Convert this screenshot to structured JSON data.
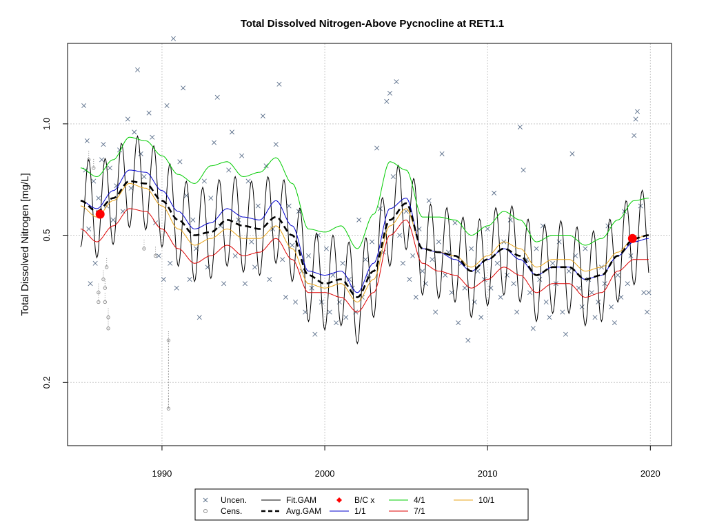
{
  "chart_data": {
    "type": "scatter",
    "title": "Total Dissolved Nitrogen-Above Pycnocline at RET1.1",
    "xlabel": "",
    "ylabel": "Total Dissolved Nitrogen [mg/L]",
    "xlim": [
      1984.2,
      2021.3
    ],
    "ylim": [
      0.135,
      1.65
    ],
    "y_scale": "log",
    "x_ticks": [
      1990,
      2000,
      2010,
      2020
    ],
    "y_ticks": [
      0.2,
      0.5,
      1.0
    ],
    "y_tick_labels": [
      "0.2",
      "0.5",
      "1.0"
    ],
    "grid": true,
    "legend_position": "bottom",
    "legend": [
      {
        "key": "uncen",
        "label": "Uncen.",
        "marker": "x",
        "color": "#5a6e8a"
      },
      {
        "key": "cens",
        "label": "Cens.",
        "marker": "circle",
        "color": "#8a8a8a"
      },
      {
        "key": "fit_gam",
        "label": "Fit.GAM",
        "line": "solid",
        "color": "#000000"
      },
      {
        "key": "avg_gam",
        "label": "Avg.GAM",
        "line": "dashed",
        "color": "#000000"
      },
      {
        "key": "bc",
        "label": "B/C x",
        "marker": "diamond",
        "color": "#ff0000"
      },
      {
        "key": "d1_1",
        "label": "1/1",
        "line": "solid",
        "color": "#0000cc"
      },
      {
        "key": "d4_1",
        "label": "4/1",
        "line": "solid",
        "color": "#00cc00"
      },
      {
        "key": "d7_1",
        "label": "7/1",
        "line": "solid",
        "color": "#dd0000"
      },
      {
        "key": "d10_1",
        "label": "10/1",
        "line": "solid",
        "color": "#e8a317"
      }
    ],
    "series": [
      {
        "key": "avg_gam",
        "x": [
          1985.0,
          1986.0,
          1987.0,
          1988.0,
          1989.0,
          1990.0,
          1991.0,
          1992.0,
          1993.0,
          1994.0,
          1995.0,
          1996.0,
          1997.0,
          1998.0,
          1999.0,
          2000.0,
          2001.0,
          2002.0,
          2003.0,
          2004.0,
          2005.0,
          2006.0,
          2007.0,
          2008.0,
          2009.0,
          2010.0,
          2011.0,
          2012.0,
          2013.0,
          2014.0,
          2015.0,
          2016.0,
          2017.0,
          2018.0,
          2019.0,
          2019.9
        ],
        "y": [
          0.62,
          0.58,
          0.63,
          0.7,
          0.69,
          0.62,
          0.55,
          0.5,
          0.51,
          0.55,
          0.53,
          0.52,
          0.56,
          0.5,
          0.39,
          0.37,
          0.38,
          0.34,
          0.4,
          0.55,
          0.61,
          0.46,
          0.45,
          0.44,
          0.4,
          0.43,
          0.46,
          0.44,
          0.39,
          0.41,
          0.41,
          0.38,
          0.39,
          0.44,
          0.49,
          0.5
        ]
      },
      {
        "key": "d1_1",
        "x": [
          1985.0,
          1986.0,
          1987.0,
          1988.0,
          1989.0,
          1990.0,
          1991.0,
          1992.0,
          1993.0,
          1994.0,
          1995.0,
          1996.0,
          1997.0,
          1998.0,
          1999.0,
          2000.0,
          2001.0,
          2002.0,
          2003.0,
          2004.0,
          2005.0,
          2006.0,
          2007.0,
          2008.0,
          2009.0,
          2010.0,
          2011.0,
          2012.0,
          2013.0,
          2014.0,
          2015.0,
          2016.0,
          2017.0,
          2018.0,
          2019.0,
          2019.9
        ],
        "y": [
          0.62,
          0.59,
          0.66,
          0.75,
          0.74,
          0.66,
          0.58,
          0.52,
          0.54,
          0.59,
          0.56,
          0.55,
          0.62,
          0.53,
          0.4,
          0.39,
          0.4,
          0.35,
          0.42,
          0.59,
          0.63,
          0.46,
          0.45,
          0.43,
          0.4,
          0.43,
          0.46,
          0.43,
          0.39,
          0.41,
          0.41,
          0.38,
          0.39,
          0.44,
          0.48,
          0.49
        ]
      },
      {
        "key": "d4_1",
        "x": [
          1985.0,
          1986.0,
          1987.0,
          1988.0,
          1989.0,
          1990.0,
          1991.0,
          1992.0,
          1993.0,
          1994.0,
          1995.0,
          1996.0,
          1997.0,
          1998.0,
          1999.0,
          2000.0,
          2001.0,
          2002.0,
          2003.0,
          2004.0,
          2005.0,
          2006.0,
          2007.0,
          2008.0,
          2009.0,
          2010.0,
          2011.0,
          2012.0,
          2013.0,
          2014.0,
          2015.0,
          2016.0,
          2017.0,
          2018.0,
          2019.0,
          2019.9
        ],
        "y": [
          0.76,
          0.72,
          0.8,
          0.92,
          0.9,
          0.82,
          0.73,
          0.69,
          0.77,
          0.79,
          0.72,
          0.74,
          0.81,
          0.69,
          0.52,
          0.51,
          0.53,
          0.46,
          0.57,
          0.79,
          0.75,
          0.56,
          0.56,
          0.55,
          0.5,
          0.53,
          0.58,
          0.55,
          0.48,
          0.5,
          0.5,
          0.47,
          0.49,
          0.55,
          0.62,
          0.63
        ]
      },
      {
        "key": "d7_1",
        "x": [
          1985.0,
          1986.0,
          1987.0,
          1988.0,
          1989.0,
          1990.0,
          1991.0,
          1992.0,
          1993.0,
          1994.0,
          1995.0,
          1996.0,
          1997.0,
          1998.0,
          1999.0,
          2000.0,
          2001.0,
          2002.0,
          2003.0,
          2004.0,
          2005.0,
          2006.0,
          2007.0,
          2008.0,
          2009.0,
          2010.0,
          2011.0,
          2012.0,
          2013.0,
          2014.0,
          2015.0,
          2016.0,
          2017.0,
          2018.0,
          2019.0,
          2019.9
        ],
        "y": [
          0.52,
          0.48,
          0.53,
          0.59,
          0.58,
          0.52,
          0.46,
          0.42,
          0.44,
          0.47,
          0.44,
          0.45,
          0.49,
          0.43,
          0.35,
          0.35,
          0.34,
          0.31,
          0.35,
          0.5,
          0.55,
          0.42,
          0.4,
          0.39,
          0.36,
          0.38,
          0.41,
          0.39,
          0.35,
          0.37,
          0.37,
          0.34,
          0.35,
          0.4,
          0.43,
          0.43
        ]
      },
      {
        "key": "d10_1",
        "x": [
          1985.0,
          1986.0,
          1987.0,
          1988.0,
          1989.0,
          1990.0,
          1991.0,
          1992.0,
          1993.0,
          1994.0,
          1995.0,
          1996.0,
          1997.0,
          1998.0,
          1999.0,
          2000.0,
          2001.0,
          2002.0,
          2003.0,
          2004.0,
          2005.0,
          2006.0,
          2007.0,
          2008.0,
          2009.0,
          2010.0,
          2011.0,
          2012.0,
          2013.0,
          2014.0,
          2015.0,
          2016.0,
          2017.0,
          2018.0,
          2019.0,
          2019.9
        ],
        "y": [
          0.6,
          0.56,
          0.62,
          0.69,
          0.67,
          0.6,
          0.52,
          0.47,
          0.49,
          0.52,
          0.49,
          0.49,
          0.53,
          0.46,
          0.37,
          0.36,
          0.37,
          0.33,
          0.38,
          0.53,
          0.59,
          0.46,
          0.45,
          0.44,
          0.41,
          0.44,
          0.48,
          0.46,
          0.41,
          0.43,
          0.43,
          0.4,
          0.41,
          0.45,
          0.49,
          0.5
        ]
      }
    ],
    "fit_gam_seasonal_amplitude": 0.32,
    "bc_points": [
      {
        "x": 1986.2,
        "y": 0.57
      },
      {
        "x": 2018.9,
        "y": 0.49
      }
    ],
    "uncensored_points": [
      [
        1985.2,
        1.12
      ],
      [
        1985.3,
        0.75
      ],
      [
        1985.4,
        0.9
      ],
      [
        1985.5,
        0.52
      ],
      [
        1985.6,
        0.37
      ],
      [
        1985.8,
        0.7
      ],
      [
        1985.9,
        0.42
      ],
      [
        1986.1,
        0.63
      ],
      [
        1986.3,
        0.8
      ],
      [
        1986.4,
        0.88
      ],
      [
        1986.6,
        0.6
      ],
      [
        1986.8,
        0.76
      ],
      [
        1987.0,
        0.55
      ],
      [
        1987.2,
        0.68
      ],
      [
        1987.4,
        0.85
      ],
      [
        1987.6,
        0.58
      ],
      [
        1987.9,
        1.03
      ],
      [
        1988.1,
        0.67
      ],
      [
        1988.3,
        0.95
      ],
      [
        1988.5,
        1.4
      ],
      [
        1988.7,
        0.83
      ],
      [
        1988.9,
        0.72
      ],
      [
        1989.2,
        1.07
      ],
      [
        1989.4,
        0.92
      ],
      [
        1989.6,
        0.54
      ],
      [
        1989.8,
        0.44
      ],
      [
        1990.1,
        0.38
      ],
      [
        1990.3,
        1.12
      ],
      [
        1990.5,
        0.42
      ],
      [
        1990.7,
        1.7
      ],
      [
        1990.9,
        0.36
      ],
      [
        1991.1,
        0.79
      ],
      [
        1991.3,
        1.25
      ],
      [
        1991.5,
        0.64
      ],
      [
        1991.7,
        0.38
      ],
      [
        1991.9,
        0.55
      ],
      [
        1992.1,
        0.46
      ],
      [
        1992.3,
        0.3
      ],
      [
        1992.6,
        0.7
      ],
      [
        1992.8,
        0.41
      ],
      [
        1993.0,
        0.63
      ],
      [
        1993.2,
        0.89
      ],
      [
        1993.4,
        1.18
      ],
      [
        1993.6,
        0.53
      ],
      [
        1993.8,
        0.37
      ],
      [
        1994.1,
        0.75
      ],
      [
        1994.3,
        0.95
      ],
      [
        1994.5,
        0.44
      ],
      [
        1994.7,
        0.55
      ],
      [
        1994.9,
        0.82
      ],
      [
        1995.1,
        0.37
      ],
      [
        1995.3,
        0.7
      ],
      [
        1995.5,
        0.48
      ],
      [
        1995.7,
        0.41
      ],
      [
        1995.9,
        0.6
      ],
      [
        1996.2,
        1.05
      ],
      [
        1996.4,
        0.77
      ],
      [
        1996.6,
        0.38
      ],
      [
        1996.8,
        0.52
      ],
      [
        1997.0,
        0.88
      ],
      [
        1997.2,
        1.28
      ],
      [
        1997.4,
        0.43
      ],
      [
        1997.6,
        0.34
      ],
      [
        1997.8,
        0.6
      ],
      [
        1998.0,
        0.47
      ],
      [
        1998.2,
        0.33
      ],
      [
        1998.4,
        0.58
      ],
      [
        1998.6,
        0.4
      ],
      [
        1998.8,
        0.31
      ],
      [
        1999.0,
        0.44
      ],
      [
        1999.2,
        0.36
      ],
      [
        1999.4,
        0.27
      ],
      [
        1999.6,
        0.5
      ],
      [
        1999.8,
        0.33
      ],
      [
        2000.1,
        0.46
      ],
      [
        2000.3,
        0.31
      ],
      [
        2000.5,
        0.39
      ],
      [
        2000.7,
        0.29
      ],
      [
        2000.9,
        0.33
      ],
      [
        2001.1,
        0.42
      ],
      [
        2001.3,
        0.3
      ],
      [
        2001.5,
        0.38
      ],
      [
        2001.7,
        0.36
      ],
      [
        2001.9,
        0.31
      ],
      [
        2002.1,
        0.55
      ],
      [
        2002.3,
        0.34
      ],
      [
        2002.5,
        0.43
      ],
      [
        2002.7,
        0.39
      ],
      [
        2002.9,
        0.48
      ],
      [
        2003.2,
        0.86
      ],
      [
        2003.4,
        0.59
      ],
      [
        2003.6,
        0.45
      ],
      [
        2003.8,
        1.15
      ],
      [
        2004.0,
        1.21
      ],
      [
        2004.2,
        0.72
      ],
      [
        2004.4,
        1.3
      ],
      [
        2004.6,
        0.5
      ],
      [
        2004.8,
        0.42
      ],
      [
        2005.0,
        0.58
      ],
      [
        2005.2,
        0.38
      ],
      [
        2005.4,
        0.44
      ],
      [
        2005.6,
        0.34
      ],
      [
        2005.8,
        0.52
      ],
      [
        2006.0,
        0.4
      ],
      [
        2006.2,
        0.37
      ],
      [
        2006.4,
        0.62
      ],
      [
        2006.6,
        0.43
      ],
      [
        2006.8,
        0.31
      ],
      [
        2007.0,
        0.48
      ],
      [
        2007.2,
        0.83
      ],
      [
        2007.4,
        0.39
      ],
      [
        2007.6,
        0.45
      ],
      [
        2007.8,
        0.35
      ],
      [
        2008.0,
        0.54
      ],
      [
        2008.2,
        0.29
      ],
      [
        2008.4,
        0.42
      ],
      [
        2008.6,
        0.36
      ],
      [
        2008.8,
        0.26
      ],
      [
        2009.0,
        0.46
      ],
      [
        2009.2,
        0.33
      ],
      [
        2009.4,
        0.4
      ],
      [
        2009.6,
        0.3
      ],
      [
        2009.8,
        0.38
      ],
      [
        2010.0,
        0.52
      ],
      [
        2010.2,
        0.36
      ],
      [
        2010.4,
        0.65
      ],
      [
        2010.6,
        0.42
      ],
      [
        2010.8,
        0.34
      ],
      [
        2011.0,
        0.48
      ],
      [
        2011.2,
        0.39
      ],
      [
        2011.4,
        0.55
      ],
      [
        2011.6,
        0.37
      ],
      [
        2011.8,
        0.31
      ],
      [
        2012.0,
        0.98
      ],
      [
        2012.2,
        0.75
      ],
      [
        2012.4,
        0.43
      ],
      [
        2012.6,
        0.35
      ],
      [
        2012.8,
        0.28
      ],
      [
        2013.0,
        0.46
      ],
      [
        2013.2,
        0.38
      ],
      [
        2013.4,
        0.53
      ],
      [
        2013.6,
        0.33
      ],
      [
        2013.8,
        0.3
      ],
      [
        2014.0,
        0.42
      ],
      [
        2014.2,
        0.37
      ],
      [
        2014.4,
        0.48
      ],
      [
        2014.6,
        0.31
      ],
      [
        2014.8,
        0.27
      ],
      [
        2015.0,
        0.4
      ],
      [
        2015.2,
        0.83
      ],
      [
        2015.4,
        0.44
      ],
      [
        2015.6,
        0.36
      ],
      [
        2015.8,
        0.32
      ],
      [
        2016.0,
        0.46
      ],
      [
        2016.2,
        0.38
      ],
      [
        2016.4,
        0.35
      ],
      [
        2016.6,
        0.3
      ],
      [
        2016.8,
        0.33
      ],
      [
        2017.0,
        0.41
      ],
      [
        2017.2,
        0.37
      ],
      [
        2017.4,
        0.53
      ],
      [
        2017.6,
        0.32
      ],
      [
        2017.8,
        0.29
      ],
      [
        2018.0,
        0.39
      ],
      [
        2018.2,
        0.34
      ],
      [
        2018.4,
        0.58
      ],
      [
        2018.6,
        0.37
      ],
      [
        2018.8,
        0.44
      ],
      [
        2019.0,
        0.93
      ],
      [
        2019.1,
        1.03
      ],
      [
        2019.2,
        1.08
      ],
      [
        2019.4,
        0.6
      ],
      [
        2019.6,
        0.35
      ],
      [
        2019.8,
        0.31
      ],
      [
        2019.9,
        0.35
      ]
    ],
    "censored_points": [
      [
        1985.5,
        0.8
      ],
      [
        1985.8,
        0.76
      ],
      [
        1986.1,
        0.35
      ],
      [
        1986.1,
        0.33
      ],
      [
        1986.4,
        0.38
      ],
      [
        1986.5,
        0.36
      ],
      [
        1986.5,
        0.33
      ],
      [
        1986.6,
        0.41
      ],
      [
        1986.7,
        0.3
      ],
      [
        1986.7,
        0.28
      ],
      [
        1988.9,
        0.46
      ],
      [
        1989.6,
        0.44
      ],
      [
        1990.4,
        0.26
      ],
      [
        1990.4,
        0.17
      ]
    ]
  }
}
